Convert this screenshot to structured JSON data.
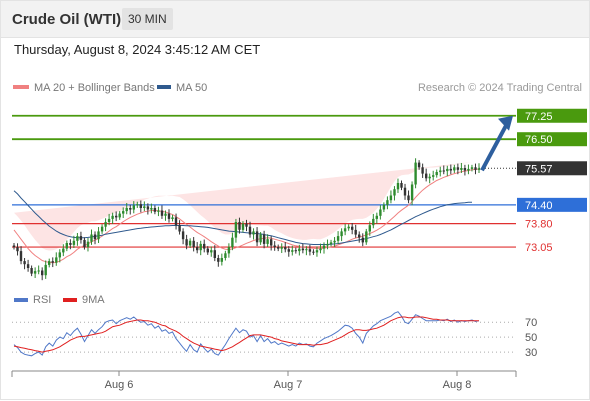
{
  "header": {
    "title": "Crude Oil (WTI)",
    "timeframe": "30 MIN",
    "datetime": "Thursday, August 8, 2024 3:45:12 AM CET"
  },
  "chart_data": [
    {
      "type": "candlestick",
      "title": "",
      "legend": [
        {
          "name": "MA 20 + Bollinger Bands",
          "color": "#f08080"
        },
        {
          "name": "MA 50",
          "color": "#2f5a8e"
        }
      ],
      "legend_placement": "top-left",
      "watermark": "Research © 2024 Trading Central",
      "x_ticks": [
        "Aug 6",
        "Aug 7",
        "Aug 8"
      ],
      "y_range": [
        71.9,
        77.85
      ],
      "grid": false,
      "levels": [
        {
          "value": 77.25,
          "label": "77.25",
          "kind": "resistance",
          "color": "#4a9a0e",
          "style": "badge"
        },
        {
          "value": 76.5,
          "label": "76.50",
          "kind": "resistance",
          "color": "#4a9a0e",
          "style": "badge"
        },
        {
          "value": 75.57,
          "label": "75.57",
          "kind": "last-price",
          "color": "#333333",
          "style": "badge"
        },
        {
          "value": 74.4,
          "label": "74.40",
          "kind": "pivot",
          "color": "#2e6fd8",
          "style": "badge"
        },
        {
          "value": 73.8,
          "label": "73.80",
          "kind": "support",
          "color": "#e03030",
          "style": "text"
        },
        {
          "value": 73.05,
          "label": "73.05",
          "kind": "support",
          "color": "#e03030",
          "style": "text"
        }
      ],
      "arrow": {
        "from": 75.57,
        "to": 77.25,
        "color": "#2e5f9e"
      },
      "series": {
        "close": [
          73.05,
          72.92,
          72.6,
          72.5,
          72.38,
          72.2,
          72.28,
          72.3,
          72.15,
          72.48,
          72.6,
          72.55,
          72.72,
          72.88,
          73.0,
          73.18,
          73.12,
          73.25,
          73.4,
          73.28,
          73.05,
          73.22,
          73.45,
          73.3,
          73.55,
          73.7,
          73.85,
          73.95,
          74.05,
          74.0,
          74.12,
          74.2,
          74.3,
          74.25,
          74.38,
          74.42,
          74.3,
          74.35,
          74.25,
          74.3,
          74.18,
          74.22,
          74.05,
          74.12,
          73.95,
          74.0,
          73.75,
          73.55,
          73.3,
          73.1,
          73.25,
          73.05,
          72.95,
          73.15,
          73.0,
          72.88,
          72.95,
          72.7,
          72.58,
          72.7,
          72.85,
          73.05,
          73.35,
          73.85,
          73.6,
          73.8,
          73.7,
          73.45,
          73.55,
          73.2,
          73.45,
          73.15,
          73.3,
          73.1,
          73.05,
          73.0,
          73.05,
          72.98,
          72.9,
          72.95,
          72.92,
          73.0,
          72.95,
          72.98,
          72.9,
          72.88,
          72.95,
          73.0,
          73.1,
          73.15,
          73.2,
          73.25,
          73.4,
          73.55,
          73.65,
          73.7,
          73.6,
          73.45,
          73.35,
          73.2,
          73.55,
          73.75,
          73.95,
          74.05,
          74.25,
          74.4,
          74.55,
          74.7,
          74.9,
          75.1,
          74.95,
          74.7,
          74.55,
          75.05,
          75.75,
          75.6,
          75.4,
          75.25,
          75.3,
          75.35,
          75.45,
          75.5,
          75.48,
          75.55,
          75.5,
          75.6,
          75.52,
          75.58,
          75.5,
          75.55,
          75.6,
          75.52,
          75.57
        ],
        "ma20": [
          73.6,
          73.45,
          73.3,
          73.15,
          73.0,
          72.88,
          72.78,
          72.7,
          72.62,
          72.58,
          72.56,
          72.55,
          72.56,
          72.6,
          72.66,
          72.74,
          72.8,
          72.88,
          72.98,
          73.05,
          73.1,
          73.15,
          73.22,
          73.27,
          73.33,
          73.4,
          73.48,
          73.56,
          73.64,
          73.7,
          73.78,
          73.86,
          73.93,
          74.0,
          74.05,
          74.1,
          74.14,
          74.18,
          74.2,
          74.22,
          74.22,
          74.21,
          74.19,
          74.17,
          74.13,
          74.09,
          74.02,
          73.95,
          73.86,
          73.77,
          73.69,
          73.6,
          73.52,
          73.45,
          73.38,
          73.3,
          73.22,
          73.15,
          73.08,
          73.02,
          72.98,
          72.97,
          72.99,
          73.03,
          73.07,
          73.12,
          73.17,
          73.21,
          73.26,
          73.29,
          73.32,
          73.33,
          73.35,
          73.33,
          73.3,
          73.27,
          73.24,
          73.2,
          73.16,
          73.12,
          73.09,
          73.07,
          73.05,
          73.03,
          73.02,
          73.01,
          73.0,
          73.0,
          73.02,
          73.04,
          73.06,
          73.08,
          73.12,
          73.16,
          73.2,
          73.25,
          73.3,
          73.34,
          73.37,
          73.4,
          73.44,
          73.48,
          73.53,
          73.59,
          73.66,
          73.74,
          73.83,
          73.93,
          74.03,
          74.14,
          74.23,
          74.31,
          74.39,
          74.5,
          74.64,
          74.76,
          74.87,
          74.96,
          75.04,
          75.11,
          75.18,
          75.23,
          75.28,
          75.32,
          75.36,
          75.4,
          75.43,
          75.46,
          75.48,
          75.5,
          75.52,
          75.53,
          75.55
        ],
        "bb_width": [
          0.55,
          0.58,
          0.6,
          0.6,
          0.58,
          0.55,
          0.5,
          0.45,
          0.4,
          0.38,
          0.38,
          0.4,
          0.42,
          0.45,
          0.5,
          0.55,
          0.6,
          0.65,
          0.68,
          0.7,
          0.7,
          0.68,
          0.65,
          0.6,
          0.58,
          0.55,
          0.52,
          0.5,
          0.48,
          0.45,
          0.42,
          0.4,
          0.38,
          0.36,
          0.35,
          0.35,
          0.36,
          0.38,
          0.4,
          0.42,
          0.45,
          0.48,
          0.5,
          0.52,
          0.55,
          0.6,
          0.65,
          0.7,
          0.72,
          0.72,
          0.7,
          0.68,
          0.65,
          0.62,
          0.6,
          0.58,
          0.55,
          0.52,
          0.5,
          0.48,
          0.47,
          0.48,
          0.5,
          0.55,
          0.58,
          0.6,
          0.58,
          0.55,
          0.5,
          0.45,
          0.42,
          0.4,
          0.38,
          0.35,
          0.3,
          0.27,
          0.25,
          0.23,
          0.22,
          0.22,
          0.22,
          0.22,
          0.23,
          0.25,
          0.28,
          0.3,
          0.3,
          0.3,
          0.32,
          0.35,
          0.4,
          0.45,
          0.5,
          0.55,
          0.6,
          0.62,
          0.62,
          0.6,
          0.58,
          0.55,
          0.55,
          0.58,
          0.62,
          0.68,
          0.75,
          0.85,
          0.95,
          1.05,
          1.12,
          1.15,
          1.12,
          1.05,
          0.98,
          0.92,
          0.85,
          0.78,
          0.7,
          0.62,
          0.55,
          0.48,
          0.42,
          0.38,
          0.35,
          0.32,
          0.3,
          0.28,
          0.27,
          0.26,
          0.25,
          0.25,
          0.25
        ],
        "ma50": [
          74.85,
          74.75,
          74.62,
          74.5,
          74.38,
          74.26,
          74.14,
          74.03,
          73.92,
          73.82,
          73.72,
          73.64,
          73.56,
          73.5,
          73.45,
          73.41,
          73.38,
          73.36,
          73.35,
          73.35,
          73.35,
          73.36,
          73.37,
          73.39,
          73.41,
          73.43,
          73.46,
          73.48,
          73.5,
          73.52,
          73.54,
          73.56,
          73.58,
          73.6,
          73.62,
          73.64,
          73.65,
          73.67,
          73.68,
          73.69,
          73.7,
          73.71,
          73.72,
          73.73,
          73.73,
          73.74,
          73.74,
          73.74,
          73.74,
          73.73,
          73.73,
          73.72,
          73.71,
          73.7,
          73.69,
          73.68,
          73.66,
          73.64,
          73.62,
          73.6,
          73.58,
          73.56,
          73.55,
          73.54,
          73.53,
          73.52,
          73.51,
          73.5,
          73.49,
          73.48,
          73.47,
          73.45,
          73.43,
          73.41,
          73.38,
          73.35,
          73.32,
          73.29,
          73.26,
          73.23,
          73.2,
          73.18,
          73.16,
          73.15,
          73.14,
          73.13,
          73.13,
          73.13,
          73.13,
          73.13,
          73.14,
          73.15,
          73.16,
          73.18,
          73.2,
          73.22,
          73.24,
          73.26,
          73.28,
          73.3,
          73.32,
          73.35,
          73.38,
          73.41,
          73.45,
          73.5,
          73.55,
          73.6,
          73.66,
          73.72,
          73.78,
          73.84,
          73.9,
          73.96,
          74.02,
          74.07,
          74.12,
          74.17,
          74.22,
          74.26,
          74.3,
          74.34,
          74.37,
          74.4,
          74.42,
          74.44,
          74.45,
          74.46,
          74.47,
          74.48,
          74.48
        ]
      }
    },
    {
      "type": "line",
      "legend": [
        {
          "name": "RSI",
          "color": "#5078c8"
        },
        {
          "name": "9MA",
          "color": "#e02020"
        }
      ],
      "legend_placement": "top-left",
      "y_ticks": [
        70,
        50,
        30
      ],
      "y_range": [
        10,
        85
      ],
      "reference_lines": [
        70,
        50,
        30
      ],
      "series": {
        "rsi": [
          40,
          36,
          30,
          27,
          26,
          25,
          28,
          30,
          26,
          37,
          42,
          38,
          46,
          50,
          48,
          56,
          52,
          58,
          62,
          54,
          44,
          52,
          60,
          55,
          60,
          64,
          70,
          72,
          73,
          68,
          72,
          74,
          76,
          74,
          77,
          73,
          70,
          71,
          66,
          68,
          62,
          65,
          58,
          60,
          55,
          57,
          48,
          42,
          36,
          31,
          40,
          33,
          30,
          41,
          35,
          30,
          34,
          28,
          26,
          33,
          40,
          48,
          55,
          62,
          56,
          60,
          58,
          50,
          52,
          44,
          52,
          44,
          48,
          42,
          44,
          40,
          42,
          40,
          38,
          40,
          38,
          42,
          40,
          41,
          38,
          37,
          42,
          45,
          48,
          50,
          52,
          55,
          58,
          62,
          66,
          65,
          62,
          55,
          50,
          42,
          55,
          60,
          65,
          68,
          72,
          74,
          76,
          78,
          82,
          84,
          78,
          70,
          68,
          74,
          80,
          78,
          75,
          72,
          72,
          72,
          72,
          73,
          72,
          74,
          71,
          73,
          70,
          72,
          71,
          72,
          73,
          71,
          72
        ],
        "ma9": [
          38,
          37,
          36,
          35,
          34,
          33,
          32,
          31,
          30,
          31,
          32,
          33,
          35,
          37,
          40,
          43,
          46,
          48,
          50,
          51,
          51,
          52,
          53,
          54,
          55,
          56,
          58,
          61,
          64,
          65,
          66,
          68,
          70,
          71,
          72,
          73,
          73,
          72,
          72,
          71,
          70,
          68,
          66,
          65,
          62,
          60,
          58,
          55,
          51,
          48,
          45,
          42,
          40,
          38,
          37,
          36,
          35,
          34,
          33,
          32,
          33,
          35,
          37,
          40,
          43,
          46,
          49,
          52,
          53,
          53,
          53,
          52,
          51,
          50,
          48,
          47,
          45,
          44,
          43,
          42,
          41,
          40,
          40,
          40,
          40,
          39,
          40,
          40,
          41,
          42,
          44,
          46,
          48,
          50,
          53,
          56,
          58,
          60,
          60,
          59,
          59,
          60,
          61,
          62,
          64,
          66,
          69,
          72,
          74,
          76,
          77,
          77,
          76,
          76,
          77,
          77,
          77,
          76,
          75,
          74,
          74,
          73,
          73,
          73,
          72,
          72,
          72,
          72,
          72,
          72,
          72,
          72,
          72
        ]
      }
    }
  ]
}
